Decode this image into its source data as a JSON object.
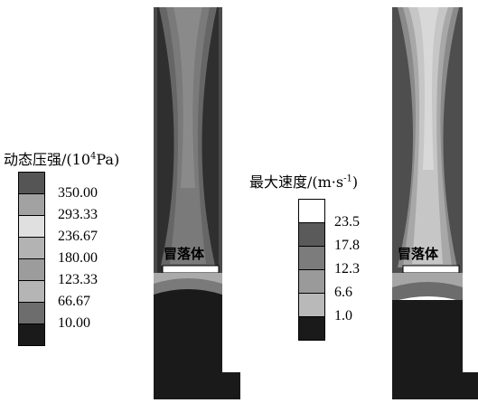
{
  "legends": [
    {
      "title_prefix": "动态压强/(10",
      "title_sup": "4",
      "title_suffix": "Pa)",
      "ticks": [
        "350.00",
        "293.33",
        "236.67",
        "180.00",
        "123.33",
        "66.67",
        "10.00"
      ],
      "colors": [
        "#555555",
        "#a2a2a2",
        "#e0e0e0",
        "#b3b3b3",
        "#9c9c9c",
        "#b5b5b5",
        "#6d6d6d",
        "#1a1a1a"
      ]
    },
    {
      "title_prefix": "最大速度/(m·s",
      "title_sup": "-1",
      "title_suffix": ")",
      "ticks": [
        "23.5",
        "17.8",
        "12.3",
        "6.6",
        "1.0"
      ],
      "colors": [
        "#ffffff",
        "#5a5a5a",
        "#7c7c7c",
        "#9a9a9a",
        "#b9b9b9",
        "#1a1a1a"
      ]
    }
  ],
  "plot_labels": [
    "冒落体",
    "冒落体"
  ]
}
